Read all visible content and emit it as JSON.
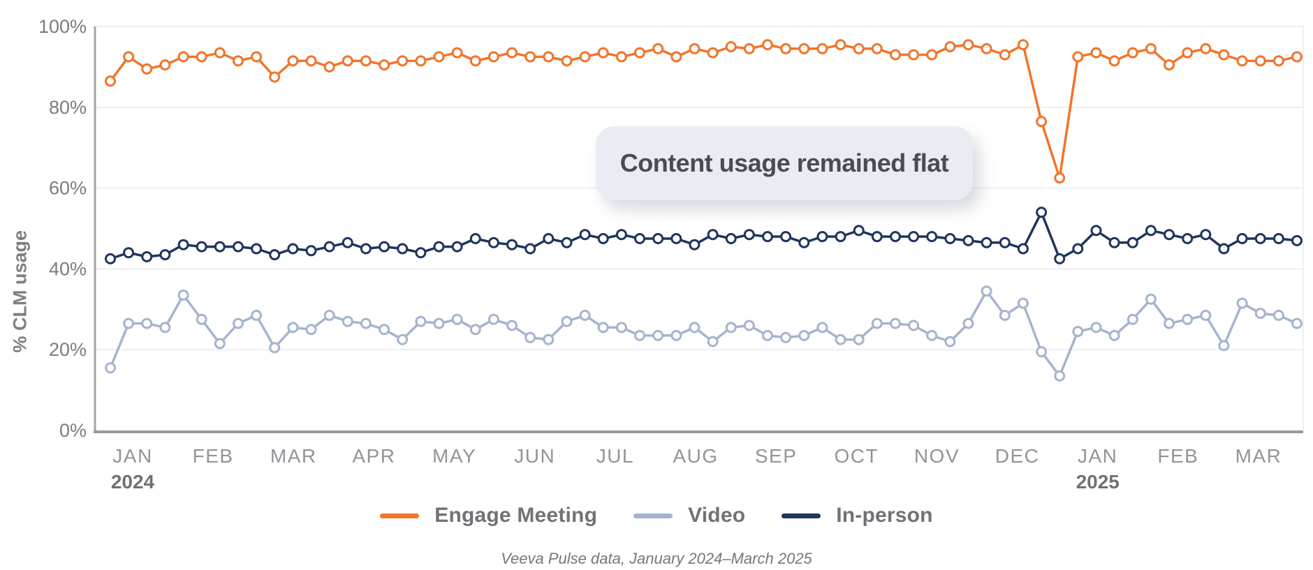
{
  "chart_data": {
    "type": "line",
    "title": "",
    "xlabel": "",
    "ylabel": "% CLM usage",
    "ylim": [
      0,
      100
    ],
    "y_ticks": [
      "0%",
      "20%",
      "40%",
      "60%",
      "80%",
      "100%"
    ],
    "x_unit": "week",
    "grid": "horizontal",
    "marker": "open-circle",
    "legend_position": "bottom",
    "x_months": [
      {
        "label": "JAN",
        "year": "2024"
      },
      {
        "label": "FEB"
      },
      {
        "label": "MAR"
      },
      {
        "label": "APR"
      },
      {
        "label": "MAY"
      },
      {
        "label": "JUN"
      },
      {
        "label": "JUL"
      },
      {
        "label": "AUG"
      },
      {
        "label": "SEP"
      },
      {
        "label": "OCT"
      },
      {
        "label": "NOV"
      },
      {
        "label": "DEC"
      },
      {
        "label": "JAN",
        "year": "2025"
      },
      {
        "label": "FEB"
      },
      {
        "label": "MAR"
      }
    ],
    "series": [
      {
        "name": "Engage Meeting",
        "color": "#f0752b",
        "values": [
          86.5,
          92.5,
          89.5,
          90.5,
          92.5,
          92.5,
          93.5,
          91.5,
          92.5,
          87.5,
          91.5,
          91.5,
          90,
          91.5,
          91.5,
          90.5,
          91.5,
          91.5,
          92.5,
          93.5,
          91.5,
          92.5,
          93.5,
          92.5,
          92.5,
          91.5,
          92.5,
          93.5,
          92.5,
          93.5,
          94.5,
          92.5,
          94.5,
          93.5,
          95,
          94.5,
          95.5,
          94.5,
          94.5,
          94.5,
          95.5,
          94.5,
          94.5,
          93,
          93,
          93,
          95,
          95.5,
          94.5,
          93,
          95.5,
          76.5,
          62.5,
          92.5,
          93.5,
          91.5,
          93.5,
          94.5,
          90.5,
          93.5,
          94.5,
          93,
          91.5,
          91.5,
          91.5,
          92.5
        ]
      },
      {
        "name": "Video",
        "color": "#a5b4ce",
        "values": [
          15.5,
          26.5,
          26.5,
          25.5,
          33.5,
          27.5,
          21.5,
          26.5,
          28.5,
          20.5,
          25.5,
          25,
          28.5,
          27,
          26.5,
          25,
          22.5,
          27,
          26.5,
          27.5,
          25,
          27.5,
          26,
          23,
          22.5,
          27,
          28.5,
          25.5,
          25.5,
          23.5,
          23.5,
          23.5,
          25.5,
          22,
          25.5,
          26,
          23.5,
          23,
          23.5,
          25.5,
          22.5,
          22.5,
          26.5,
          26.5,
          26,
          23.5,
          22,
          26.5,
          34.5,
          28.5,
          31.5,
          19.5,
          13.5,
          24.5,
          25.5,
          23.5,
          27.5,
          32.5,
          26.5,
          27.5,
          28.5,
          21,
          31.5,
          29,
          28.5,
          26.5
        ]
      },
      {
        "name": "In-person",
        "color": "#1e355e",
        "values": [
          42.5,
          44,
          43,
          43.5,
          46,
          45.5,
          45.5,
          45.5,
          45,
          43.5,
          45,
          44.5,
          45.5,
          46.5,
          45,
          45.5,
          45,
          44,
          45.5,
          45.5,
          47.5,
          46.5,
          46,
          45,
          47.5,
          46.5,
          48.5,
          47.5,
          48.5,
          47.5,
          47.5,
          47.5,
          46,
          48.5,
          47.5,
          48.5,
          48,
          48,
          46.5,
          48,
          48,
          49.5,
          48,
          48,
          48,
          48,
          47.5,
          47,
          46.5,
          46.5,
          45,
          54,
          42.5,
          45,
          49.5,
          46.5,
          46.5,
          49.5,
          48.5,
          47.5,
          48.5,
          45,
          47.5,
          47.5,
          47.5,
          47
        ]
      }
    ]
  },
  "annotation": {
    "text": "Content usage remained flat"
  },
  "caption": "Veeva Pulse data, January 2024–March 2025",
  "colors": {
    "grid": "#efeff1",
    "y_axis_line": "#a3a3a6",
    "x_axis_line": "#99999c",
    "tick_label": "#7b7c80",
    "month_label": "#939499",
    "year_label": "#707175",
    "annotation_bg": "#e9edf3",
    "annotation_text": "#4b4c50"
  }
}
